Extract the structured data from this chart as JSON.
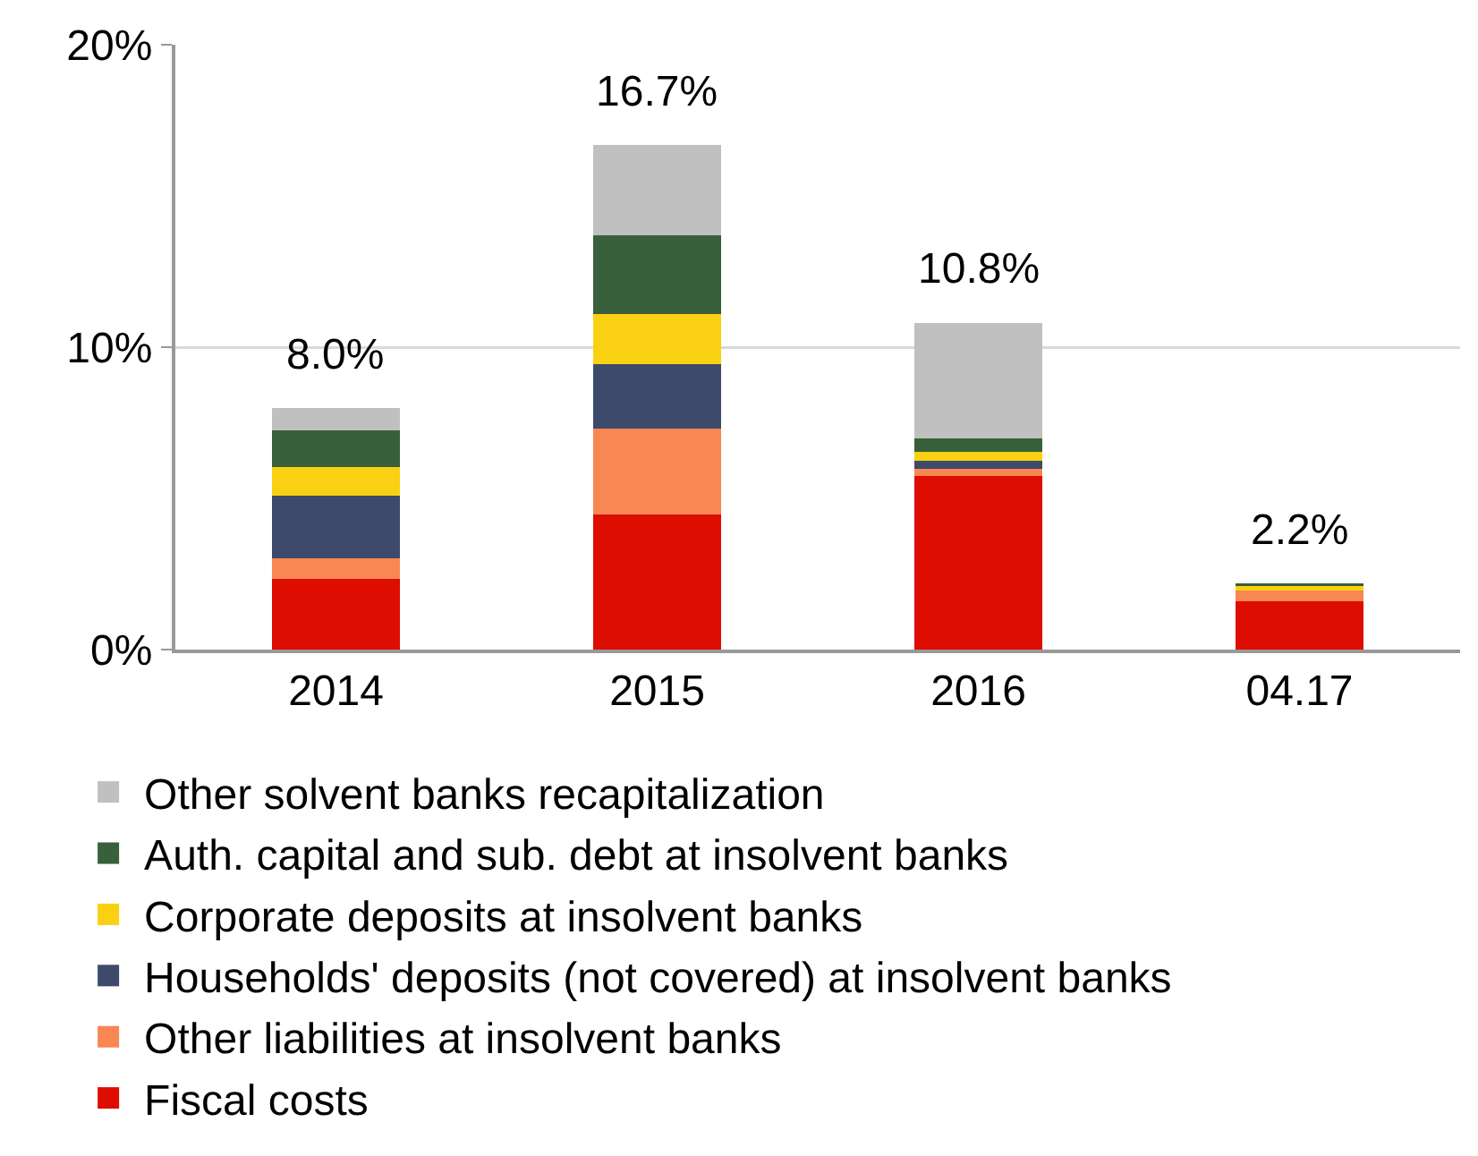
{
  "chart_data": {
    "type": "bar",
    "stacked": true,
    "categories": [
      "2014",
      "2015",
      "2016",
      "04.17"
    ],
    "series": [
      {
        "name": "Fiscal costs",
        "color": "#dd0d02",
        "values": [
          2.34,
          4.46,
          5.73,
          1.6
        ]
      },
      {
        "name": "Other liabilities at insolvent banks",
        "color": "#f88754",
        "values": [
          0.69,
          2.85,
          0.25,
          0.35
        ]
      },
      {
        "name": "Households' deposits (not covered) at insolvent banks",
        "color": "#3d4a6b",
        "values": [
          2.06,
          2.14,
          0.27,
          0
        ]
      },
      {
        "name": "Corporate deposits at insolvent banks",
        "color": "#fad012",
        "values": [
          0.95,
          1.64,
          0.28,
          0.15
        ]
      },
      {
        "name": "Auth. capital and sub. debt at insolvent banks",
        "color": "#38603a",
        "values": [
          1.22,
          2.6,
          0.46,
          0.1
        ]
      },
      {
        "name": "Other solvent banks recapitalization",
        "color": "#c0c0c0",
        "values": [
          0.74,
          3.01,
          3.81,
          0
        ]
      }
    ],
    "totals": [
      "8.0%",
      "16.7%",
      "10.8%",
      "2.2%"
    ],
    "ylim": [
      0,
      20
    ],
    "yticks": [
      {
        "value": 0,
        "label": "0%"
      },
      {
        "value": 10,
        "label": "10%"
      },
      {
        "value": 20,
        "label": "20%"
      }
    ],
    "grid": "y",
    "legend": "bottom"
  }
}
